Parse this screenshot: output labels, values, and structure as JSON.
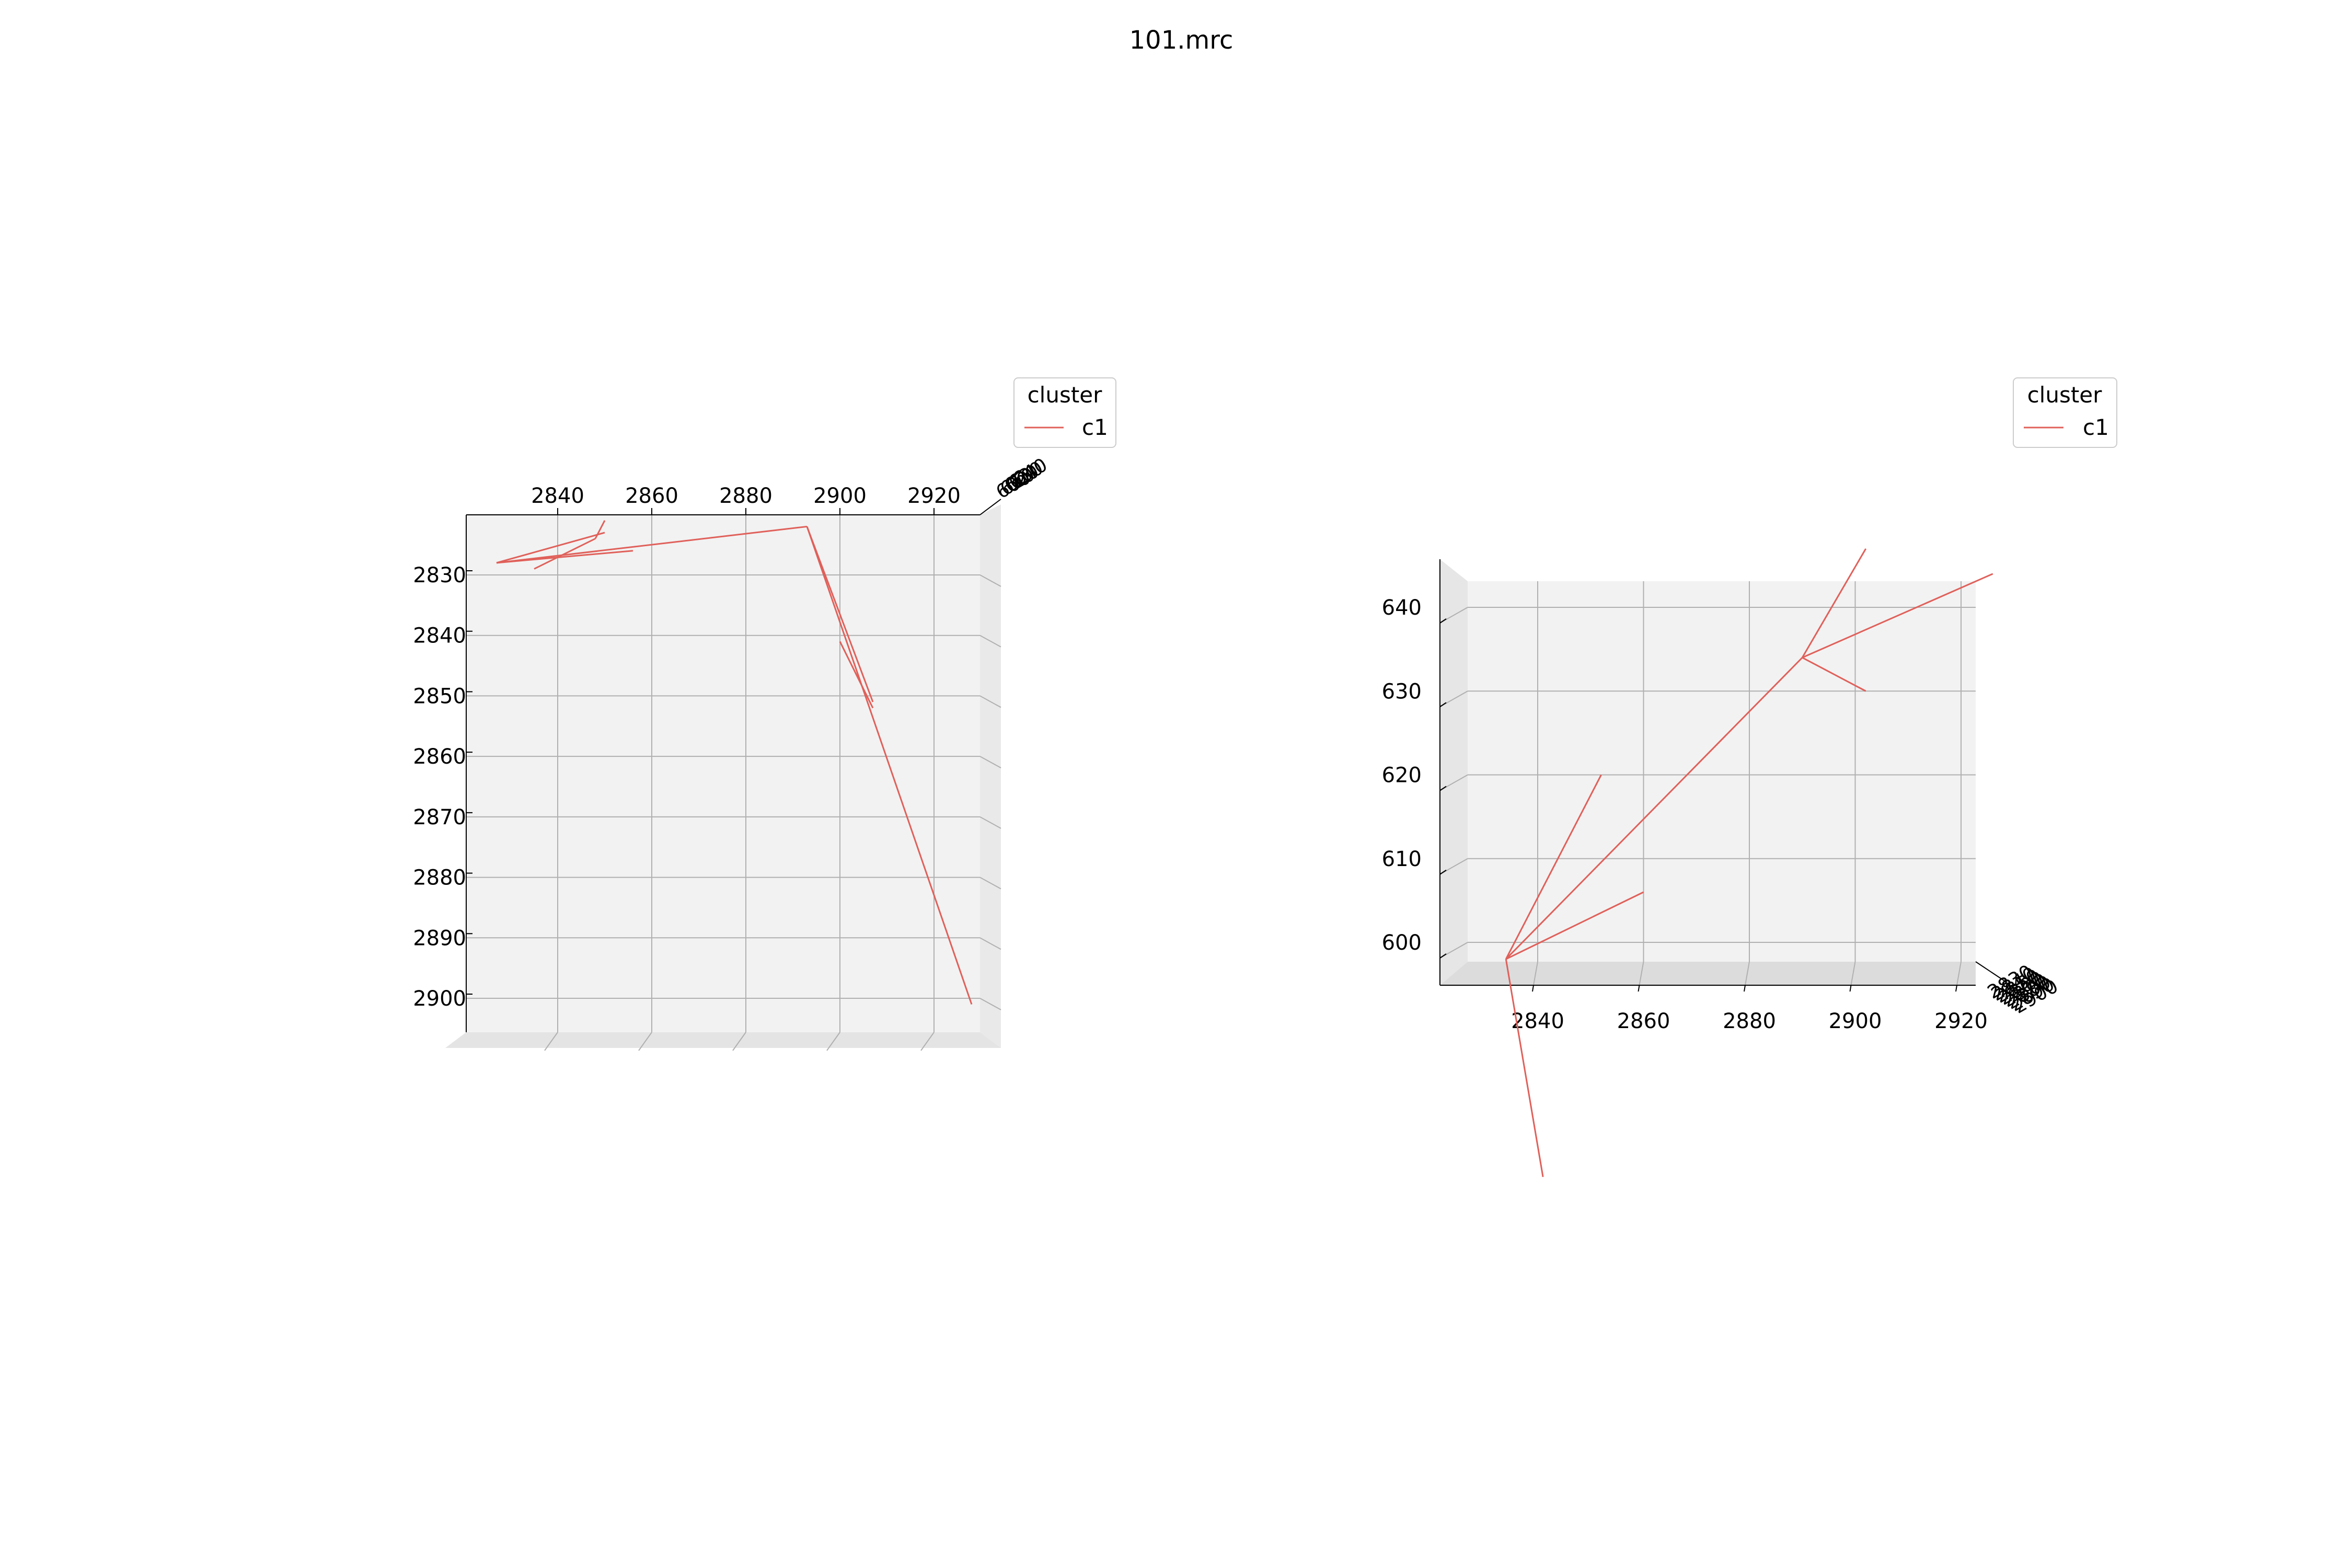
{
  "figure": {
    "title": "101.mrc"
  },
  "colors": {
    "series": "#e0605a",
    "pane": "#f2f2f2",
    "grid": "#b0b0b0",
    "axis": "#000000"
  },
  "chart_data": [
    {
      "type": "line",
      "projection": "3d-top (x horizontal, y vertical inverted)",
      "title": "",
      "legend": {
        "title": "cluster",
        "entries": [
          "c1"
        ],
        "position": "top-right"
      },
      "grid": true,
      "x_ticks": [
        "2840",
        "2860",
        "2880",
        "2900",
        "2920"
      ],
      "y_ticks": [
        "2830",
        "2840",
        "2850",
        "2860",
        "2870",
        "2880",
        "2890",
        "2900"
      ],
      "z_ticks": [
        "600",
        "610",
        "620",
        "630",
        "640"
      ],
      "xlim": [
        2821,
        2934
      ],
      "ylim": [
        2821,
        2905
      ],
      "series": [
        {
          "name": "c1",
          "segments": [
            [
              [
                2827,
                2828
              ],
              [
                2850,
                2823
              ]
            ],
            [
              [
                2827,
                2828
              ],
              [
                2856,
                2826
              ]
            ],
            [
              [
                2827,
                2828
              ],
              [
                2893,
                2822
              ]
            ],
            [
              [
                2835,
                2829
              ],
              [
                2848,
                2824
              ]
            ],
            [
              [
                2848,
                2824
              ],
              [
                2850,
                2821
              ]
            ],
            [
              [
                2893,
                2822
              ],
              [
                2928,
                2901
              ]
            ],
            [
              [
                2893,
                2822
              ],
              [
                2907,
                2851
              ]
            ],
            [
              [
                2900,
                2841
              ],
              [
                2907,
                2852
              ]
            ]
          ]
        }
      ]
    },
    {
      "type": "line",
      "projection": "3d-front (x horizontal, z vertical)",
      "title": "",
      "legend": {
        "title": "cluster",
        "entries": [
          "c1"
        ],
        "position": "top-right"
      },
      "grid": true,
      "x_ticks": [
        "2840",
        "2860",
        "2880",
        "2900",
        "2920"
      ],
      "z_ticks": [
        "600",
        "610",
        "620",
        "630",
        "640"
      ],
      "y_ticks": [
        "2830",
        "2840",
        "2850",
        "2860",
        "2870",
        "2880",
        "2890",
        "2900"
      ],
      "xlim": [
        2823,
        2926
      ],
      "zlim": [
        596,
        644
      ],
      "series": [
        {
          "name": "c1",
          "segments": [
            [
              [
                2834,
                598
              ],
              [
                2841,
                572
              ]
            ],
            [
              [
                2834,
                598
              ],
              [
                2852,
                620
              ]
            ],
            [
              [
                2834,
                598
              ],
              [
                2860,
                606
              ]
            ],
            [
              [
                2834,
                598
              ],
              [
                2890,
                634
              ]
            ],
            [
              [
                2890,
                634
              ],
              [
                2902,
                630
              ]
            ],
            [
              [
                2890,
                634
              ],
              [
                2902,
                647
              ]
            ],
            [
              [
                2890,
                634
              ],
              [
                2926,
                644
              ]
            ]
          ]
        }
      ]
    }
  ]
}
